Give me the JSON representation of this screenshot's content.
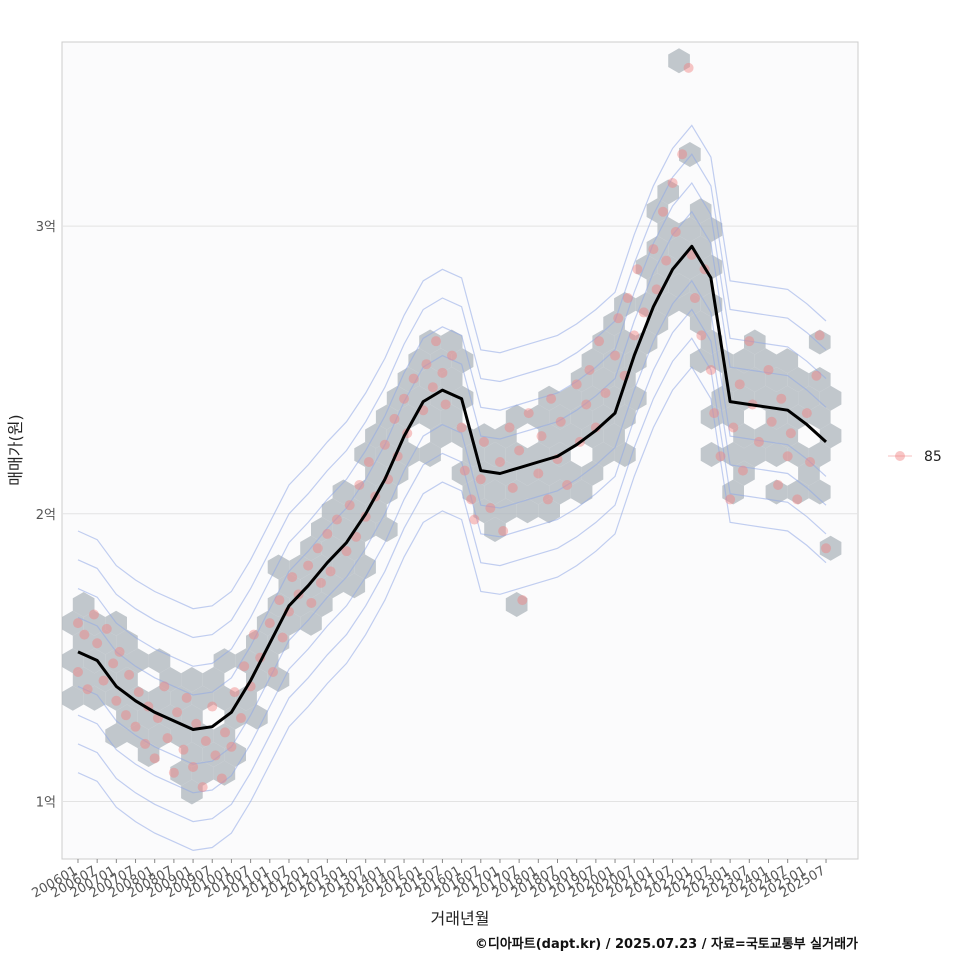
{
  "chart_data": {
    "type": "scatter",
    "xlabel": "거래년월",
    "ylabel": "매매가(원)",
    "y_unit_per_tick": 100000000,
    "ylim": [
      0.8,
      3.64
    ],
    "xlim": [
      "2005-08",
      "2026-05"
    ],
    "x_tick_labels": [
      "200601",
      "200607",
      "200701",
      "200707",
      "200801",
      "200807",
      "200901",
      "200907",
      "201001",
      "201007",
      "201101",
      "201107",
      "201201",
      "201207",
      "201301",
      "201307",
      "201401",
      "201407",
      "201501",
      "201507",
      "201601",
      "201607",
      "201701",
      "201707",
      "201801",
      "201807",
      "201901",
      "201907",
      "202001",
      "202007",
      "202101",
      "202107",
      "202201",
      "202207",
      "202301",
      "202307",
      "202401",
      "202407",
      "202501",
      "202507"
    ],
    "y_ticks": [
      {
        "value": 1,
        "label": "1억"
      },
      {
        "value": 2,
        "label": "2억"
      },
      {
        "value": 3,
        "label": "3억"
      }
    ],
    "legend": {
      "placement": "right",
      "entries": [
        "85"
      ]
    },
    "colors": {
      "points": "#f08080",
      "trend": "#000000",
      "hexbin": "#aeb5bc",
      "contour": "#8fa8e6",
      "panel_bg": "#fbfbfc"
    },
    "grid": true,
    "series": [
      {
        "name": "85",
        "kind": "trend",
        "x": [
          "2006-01",
          "2006-07",
          "2007-01",
          "2007-07",
          "2008-01",
          "2008-07",
          "2009-01",
          "2009-07",
          "2010-01",
          "2010-07",
          "2011-01",
          "2011-07",
          "2012-01",
          "2012-07",
          "2013-01",
          "2013-07",
          "2014-01",
          "2014-07",
          "2015-01",
          "2015-07",
          "2016-01",
          "2016-07",
          "2017-01",
          "2017-07",
          "2018-01",
          "2018-07",
          "2019-01",
          "2019-07",
          "2020-01",
          "2020-07",
          "2021-01",
          "2021-07",
          "2022-01",
          "2022-07",
          "2023-01",
          "2023-07",
          "2024-01",
          "2024-07",
          "2025-01",
          "2025-07"
        ],
        "y": [
          1.52,
          1.49,
          1.4,
          1.35,
          1.31,
          1.28,
          1.25,
          1.26,
          1.31,
          1.42,
          1.55,
          1.68,
          1.75,
          1.83,
          1.9,
          2.0,
          2.12,
          2.27,
          2.39,
          2.43,
          2.4,
          2.15,
          2.14,
          2.16,
          2.18,
          2.2,
          2.24,
          2.29,
          2.35,
          2.55,
          2.72,
          2.85,
          2.93,
          2.82,
          2.39,
          2.38,
          2.37,
          2.36,
          2.31,
          2.25
        ]
      }
    ],
    "scatter_points": [
      [
        "2006-01",
        1.62
      ],
      [
        "2006-01",
        1.45
      ],
      [
        "2006-03",
        1.58
      ],
      [
        "2006-04",
        1.39
      ],
      [
        "2006-06",
        1.65
      ],
      [
        "2006-07",
        1.55
      ],
      [
        "2006-09",
        1.42
      ],
      [
        "2006-10",
        1.6
      ],
      [
        "2006-12",
        1.48
      ],
      [
        "2007-01",
        1.35
      ],
      [
        "2007-02",
        1.52
      ],
      [
        "2007-04",
        1.3
      ],
      [
        "2007-05",
        1.44
      ],
      [
        "2007-07",
        1.26
      ],
      [
        "2007-08",
        1.38
      ],
      [
        "2007-10",
        1.2
      ],
      [
        "2007-11",
        1.33
      ],
      [
        "2008-01",
        1.15
      ],
      [
        "2008-02",
        1.29
      ],
      [
        "2008-04",
        1.4
      ],
      [
        "2008-05",
        1.22
      ],
      [
        "2008-07",
        1.1
      ],
      [
        "2008-08",
        1.31
      ],
      [
        "2008-10",
        1.18
      ],
      [
        "2008-11",
        1.36
      ],
      [
        "2009-01",
        1.12
      ],
      [
        "2009-02",
        1.27
      ],
      [
        "2009-04",
        1.05
      ],
      [
        "2009-05",
        1.21
      ],
      [
        "2009-07",
        1.33
      ],
      [
        "2009-08",
        1.16
      ],
      [
        "2009-10",
        1.08
      ],
      [
        "2009-11",
        1.24
      ],
      [
        "2010-01",
        1.19
      ],
      [
        "2010-02",
        1.38
      ],
      [
        "2010-04",
        1.29
      ],
      [
        "2010-05",
        1.47
      ],
      [
        "2010-07",
        1.4
      ],
      [
        "2010-08",
        1.58
      ],
      [
        "2010-10",
        1.5
      ],
      [
        "2011-01",
        1.62
      ],
      [
        "2011-02",
        1.45
      ],
      [
        "2011-04",
        1.7
      ],
      [
        "2011-05",
        1.57
      ],
      [
        "2011-07",
        1.66
      ],
      [
        "2011-08",
        1.78
      ],
      [
        "2011-10",
        1.72
      ],
      [
        "2012-01",
        1.82
      ],
      [
        "2012-02",
        1.69
      ],
      [
        "2012-04",
        1.88
      ],
      [
        "2012-05",
        1.76
      ],
      [
        "2012-07",
        1.93
      ],
      [
        "2012-08",
        1.8
      ],
      [
        "2012-10",
        1.98
      ],
      [
        "2013-01",
        1.87
      ],
      [
        "2013-02",
        2.03
      ],
      [
        "2013-04",
        1.92
      ],
      [
        "2013-05",
        2.1
      ],
      [
        "2013-07",
        1.99
      ],
      [
        "2013-08",
        2.18
      ],
      [
        "2013-10",
        2.06
      ],
      [
        "2014-01",
        2.24
      ],
      [
        "2014-02",
        2.12
      ],
      [
        "2014-04",
        2.33
      ],
      [
        "2014-05",
        2.2
      ],
      [
        "2014-07",
        2.4
      ],
      [
        "2014-08",
        2.28
      ],
      [
        "2014-10",
        2.47
      ],
      [
        "2015-01",
        2.36
      ],
      [
        "2015-02",
        2.52
      ],
      [
        "2015-04",
        2.44
      ],
      [
        "2015-05",
        2.6
      ],
      [
        "2015-07",
        2.49
      ],
      [
        "2015-08",
        2.38
      ],
      [
        "2015-10",
        2.55
      ],
      [
        "2016-01",
        2.3
      ],
      [
        "2016-02",
        2.15
      ],
      [
        "2016-04",
        2.05
      ],
      [
        "2016-05",
        1.98
      ],
      [
        "2016-07",
        2.12
      ],
      [
        "2016-08",
        2.25
      ],
      [
        "2016-10",
        2.02
      ],
      [
        "2017-01",
        2.18
      ],
      [
        "2017-02",
        1.94
      ],
      [
        "2017-04",
        2.3
      ],
      [
        "2017-05",
        2.09
      ],
      [
        "2017-07",
        2.22
      ],
      [
        "2017-08",
        1.7
      ],
      [
        "2017-10",
        2.35
      ],
      [
        "2018-01",
        2.14
      ],
      [
        "2018-02",
        2.27
      ],
      [
        "2018-04",
        2.05
      ],
      [
        "2018-05",
        2.4
      ],
      [
        "2018-07",
        2.19
      ],
      [
        "2018-08",
        2.32
      ],
      [
        "2018-10",
        2.1
      ],
      [
        "2019-01",
        2.45
      ],
      [
        "2019-02",
        2.25
      ],
      [
        "2019-04",
        2.38
      ],
      [
        "2019-05",
        2.5
      ],
      [
        "2019-07",
        2.3
      ],
      [
        "2019-08",
        2.6
      ],
      [
        "2019-10",
        2.42
      ],
      [
        "2020-01",
        2.55
      ],
      [
        "2020-02",
        2.68
      ],
      [
        "2020-04",
        2.48
      ],
      [
        "2020-05",
        2.75
      ],
      [
        "2020-07",
        2.62
      ],
      [
        "2020-08",
        2.85
      ],
      [
        "2020-10",
        2.7
      ],
      [
        "2021-01",
        2.92
      ],
      [
        "2021-02",
        2.78
      ],
      [
        "2021-04",
        3.05
      ],
      [
        "2021-05",
        2.88
      ],
      [
        "2021-07",
        3.15
      ],
      [
        "2021-08",
        2.98
      ],
      [
        "2021-10",
        3.25
      ],
      [
        "2021-12",
        3.55
      ],
      [
        "2022-01",
        2.9
      ],
      [
        "2022-02",
        2.75
      ],
      [
        "2022-04",
        2.62
      ],
      [
        "2022-05",
        2.85
      ],
      [
        "2022-07",
        2.5
      ],
      [
        "2022-08",
        2.35
      ],
      [
        "2022-10",
        2.2
      ],
      [
        "2023-01",
        2.05
      ],
      [
        "2023-02",
        2.3
      ],
      [
        "2023-04",
        2.45
      ],
      [
        "2023-05",
        2.15
      ],
      [
        "2023-07",
        2.6
      ],
      [
        "2023-08",
        2.38
      ],
      [
        "2023-10",
        2.25
      ],
      [
        "2024-01",
        2.5
      ],
      [
        "2024-02",
        2.32
      ],
      [
        "2024-04",
        2.1
      ],
      [
        "2024-05",
        2.4
      ],
      [
        "2024-07",
        2.2
      ],
      [
        "2024-08",
        2.28
      ],
      [
        "2024-10",
        2.05
      ],
      [
        "2025-01",
        2.35
      ],
      [
        "2025-02",
        2.18
      ],
      [
        "2025-04",
        2.48
      ],
      [
        "2025-05",
        2.62
      ],
      [
        "2025-07",
        1.88
      ]
    ]
  },
  "caption": "©디아파트(dapt.kr) / 2025.07.23 / 자료=국토교통부 실거래가"
}
